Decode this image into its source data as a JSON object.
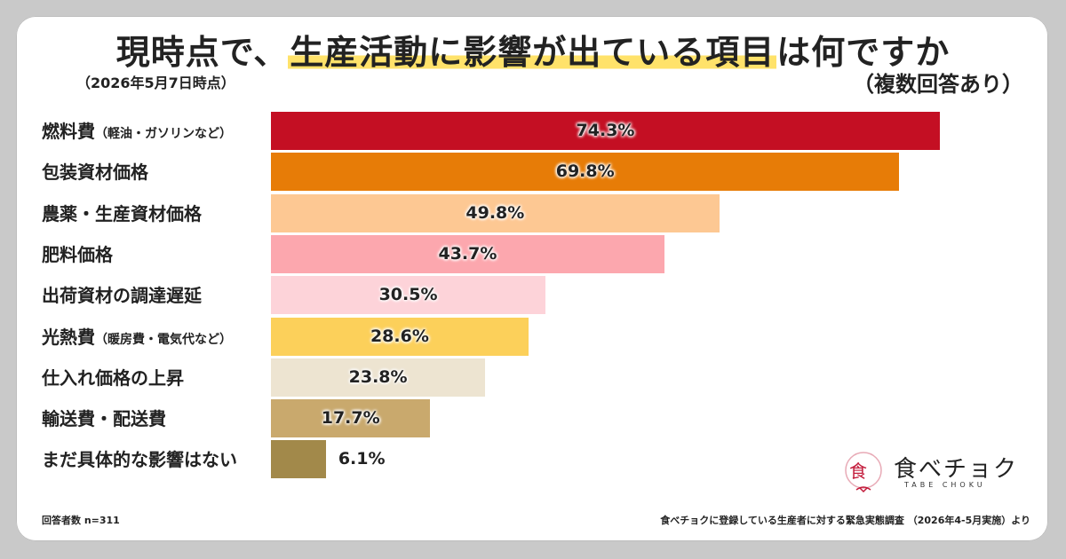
{
  "title_pre": "現時点で、",
  "title_hl": "生産活動に影響が出ている項目",
  "title_post": "は何ですか",
  "date_note": "（2026年5月7日時点）",
  "multi_note": "（複数回答あり）",
  "respondents": "回答者数 n=311",
  "source": "食べチョクに登録している生産者に対する緊急実態調査 （2026年4-5月実施）より",
  "logo": {
    "text": "食べチョク",
    "sub": "TABE CHOKU"
  },
  "chart_data": {
    "type": "bar",
    "orientation": "horizontal",
    "xlim": [
      0,
      100
    ],
    "categories": [
      {
        "label": "燃料費",
        "note": "（軽油・ガソリンなど）"
      },
      {
        "label": "包装資材価格",
        "note": ""
      },
      {
        "label": "農薬・生産資材価格",
        "note": ""
      },
      {
        "label": "肥料価格",
        "note": ""
      },
      {
        "label": "出荷資材の調達遅延",
        "note": ""
      },
      {
        "label": "光熱費",
        "note": "（暖房費・電気代など）"
      },
      {
        "label": "仕入れ価格の上昇",
        "note": ""
      },
      {
        "label": "輸送費・配送費",
        "note": ""
      },
      {
        "label": "まだ具体的な影響はない",
        "note": ""
      }
    ],
    "values": [
      74.3,
      69.8,
      49.8,
      43.7,
      30.5,
      28.6,
      23.8,
      17.7,
      6.1
    ],
    "value_labels": [
      "74.3%",
      "69.8%",
      "49.8%",
      "43.7%",
      "30.5%",
      "28.6%",
      "23.8%",
      "17.7%",
      "6.1%"
    ],
    "colors": [
      "#c40f23",
      "#e77c07",
      "#fdc893",
      "#fca7ae",
      "#fdd3d9",
      "#fcd05a",
      "#ede4d1",
      "#c9a96d",
      "#a2894a"
    ]
  }
}
